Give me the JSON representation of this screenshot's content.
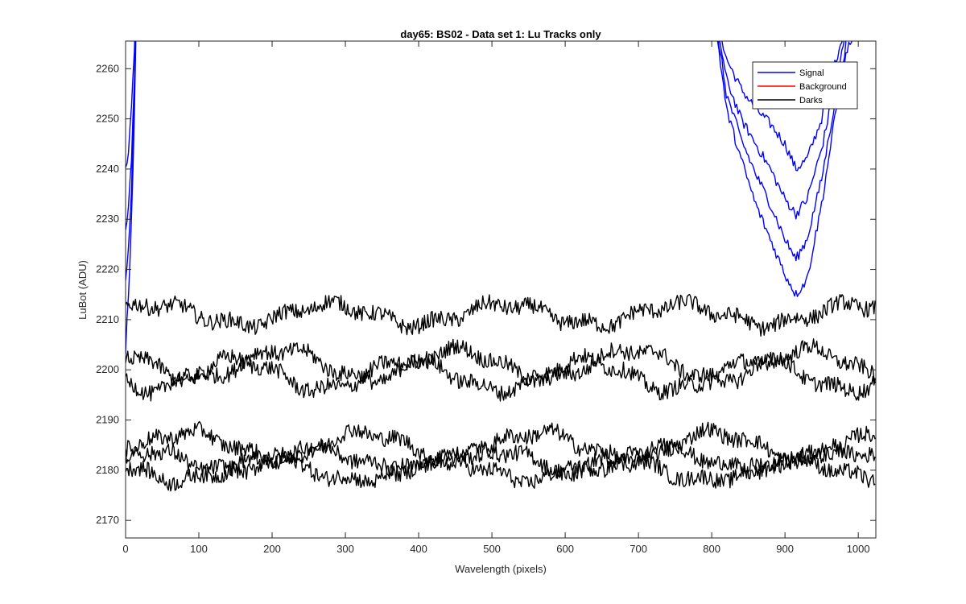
{
  "chart_data": {
    "type": "line",
    "title": "day65: BS02 - Data set 1: Lu Tracks only",
    "xlabel": "Wavelength (pixels)",
    "ylabel": "LuBot (ADU)",
    "xlim": [
      0,
      1024
    ],
    "ylim": [
      2166.5,
      2265.5
    ],
    "xticks": [
      0,
      100,
      200,
      300,
      400,
      500,
      600,
      700,
      800,
      900,
      1000
    ],
    "yticks": [
      2170,
      2180,
      2190,
      2200,
      2210,
      2220,
      2230,
      2240,
      2250,
      2260
    ],
    "grid": false,
    "legend_position": "top-right",
    "legend": [
      {
        "label": "Signal",
        "color": "#0000ff"
      },
      {
        "label": "Background",
        "color": "#ff0000"
      },
      {
        "label": "Darks",
        "color": "#000000"
      }
    ],
    "series": [
      {
        "group": "Signal",
        "color": "#0000ff",
        "x": [
          0,
          4,
          8,
          12,
          15,
          800,
          820,
          840,
          860,
          880,
          900,
          915,
          930,
          950,
          970,
          985,
          1024
        ],
        "y": [
          2240,
          2243,
          2252,
          2264,
          2275,
          2275,
          2262,
          2256,
          2252,
          2249,
          2245,
          2240,
          2242,
          2250,
          2262,
          2270,
          2275
        ]
      },
      {
        "group": "Signal",
        "color": "#0000ff",
        "x": [
          0,
          4,
          8,
          12,
          15,
          800,
          820,
          840,
          860,
          880,
          900,
          915,
          930,
          950,
          970,
          985,
          1024
        ],
        "y": [
          2228,
          2232,
          2242,
          2258,
          2275,
          2275,
          2258,
          2250,
          2245,
          2240,
          2234,
          2231,
          2234,
          2244,
          2258,
          2268,
          2275
        ]
      },
      {
        "group": "Signal",
        "color": "#0000ff",
        "x": [
          0,
          4,
          8,
          12,
          15,
          800,
          820,
          840,
          860,
          880,
          900,
          915,
          930,
          950,
          970,
          985,
          1024
        ],
        "y": [
          2217,
          2224,
          2236,
          2254,
          2275,
          2275,
          2255,
          2246,
          2239,
          2233,
          2226,
          2222,
          2226,
          2238,
          2255,
          2266,
          2275
        ]
      },
      {
        "group": "Signal",
        "color": "#0000ff",
        "x": [
          0,
          4,
          8,
          12,
          15,
          800,
          820,
          840,
          860,
          880,
          900,
          915,
          930,
          950,
          970,
          985,
          1024
        ],
        "y": [
          2204,
          2215,
          2230,
          2250,
          2275,
          2275,
          2252,
          2242,
          2233,
          2226,
          2219,
          2215,
          2218,
          2233,
          2252,
          2264,
          2275
        ]
      },
      {
        "group": "Darks",
        "color": "#000000",
        "baseline": 2211,
        "amplitude": 2.0
      },
      {
        "group": "Darks",
        "color": "#000000",
        "baseline": 2201,
        "amplitude": 3.0
      },
      {
        "group": "Darks",
        "color": "#000000",
        "baseline": 2199,
        "amplitude": 3.0
      },
      {
        "group": "Darks",
        "color": "#000000",
        "baseline": 2185,
        "amplitude": 2.5
      },
      {
        "group": "Darks",
        "color": "#000000",
        "baseline": 2182,
        "amplitude": 2.0
      },
      {
        "group": "Darks",
        "color": "#000000",
        "baseline": 2180,
        "amplitude": 2.0
      }
    ]
  }
}
